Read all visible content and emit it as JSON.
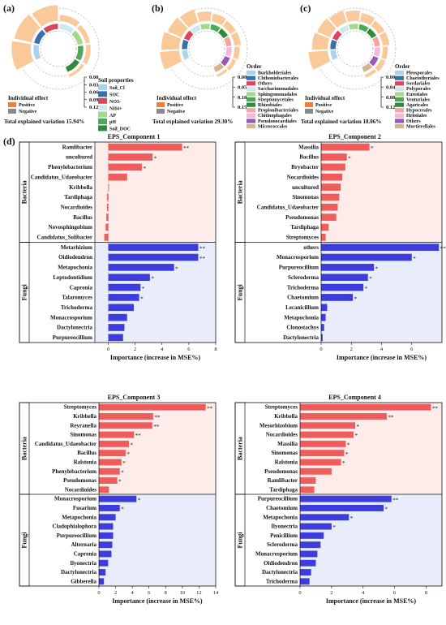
{
  "panels_top": [
    {
      "id": "a",
      "panel_label": "(a)",
      "legend_title": "Soil properties",
      "legend": [
        {
          "name": "Soil_Cl",
          "color": "#a9d3ea"
        },
        {
          "name": "SOC",
          "color": "#3a6fa8"
        },
        {
          "name": "NO3-",
          "color": "#d9485a"
        },
        {
          "name": "NH4+",
          "color": "#cfe7ef"
        },
        {
          "name": "AP",
          "color": "#a6d88a"
        },
        {
          "name": "pH",
          "color": "#4ea85a"
        },
        {
          "name": "Soil_DOC",
          "color": "#2f8a3b"
        }
      ],
      "ticks": [
        "0.00",
        "0.03",
        "0.06",
        "0.09",
        "0.12"
      ],
      "effect_title": "Individual effect",
      "effect_items": [
        {
          "name": "Positive",
          "color": "#f07f3c"
        },
        {
          "name": "Negative",
          "color": "#8a8a8a"
        }
      ],
      "total": "Total explained variation 15.94%",
      "wedges": [
        0.12,
        0.11,
        0.1,
        0.04,
        0.03,
        0.03,
        0.02
      ]
    },
    {
      "id": "b",
      "panel_label": "(b)",
      "legend_title": "Order",
      "legend": [
        {
          "name": "Burkholderiales",
          "color": "#a9d3ea"
        },
        {
          "name": "Chthoniobacterales",
          "color": "#3a6fa8"
        },
        {
          "name": "Others",
          "color": "#d9485a"
        },
        {
          "name": "Saccharimonadales",
          "color": "#cfe7ef"
        },
        {
          "name": "Sphingomonadales",
          "color": "#a6d88a"
        },
        {
          "name": "Streptomycetales",
          "color": "#4ea85a"
        },
        {
          "name": "Rhizobiales",
          "color": "#2f8a3b"
        },
        {
          "name": "Propionibacteriales",
          "color": "#f5a3a3"
        },
        {
          "name": "Chitinophagales",
          "color": "#f4b7d8"
        },
        {
          "name": "Pseudonocardiales",
          "color": "#9b59b6"
        },
        {
          "name": "Micrococcales",
          "color": "#d9b38c"
        }
      ],
      "ticks": [
        "0.00",
        "0.05",
        "0.10",
        "0.15"
      ],
      "effect_title": "Individual effect",
      "effect_items": [
        {
          "name": "Positive",
          "color": "#f07f3c"
        },
        {
          "name": "Negative",
          "color": "#8a8a8a"
        }
      ],
      "total": "Total explained variation 29.30%",
      "wedges": [
        0.14,
        0.13,
        0.11,
        0.1,
        0.07,
        0.06,
        0.05,
        0.05,
        0.04,
        0.03,
        0.02
      ]
    },
    {
      "id": "c",
      "panel_label": "(c)",
      "legend_title": "Order",
      "legend": [
        {
          "name": "Pleosporales",
          "color": "#a9d3ea"
        },
        {
          "name": "Chaetothyriales",
          "color": "#3a6fa8"
        },
        {
          "name": "Sordariales",
          "color": "#d9485a"
        },
        {
          "name": "Polyporales",
          "color": "#cfe7ef"
        },
        {
          "name": "Eurotiales",
          "color": "#a6d88a"
        },
        {
          "name": "Venturiales",
          "color": "#4ea85a"
        },
        {
          "name": "Agaricales",
          "color": "#2f8a3b"
        },
        {
          "name": "Hypocreales",
          "color": "#f5a3a3"
        },
        {
          "name": "Helotiales",
          "color": "#f4b7d8"
        },
        {
          "name": "Others",
          "color": "#9b59b6"
        },
        {
          "name": "Mortierellales",
          "color": "#d9b38c"
        }
      ],
      "ticks": [
        "0.00",
        "0.04",
        "0.08",
        "0.12"
      ],
      "effect_title": "Individual effect",
      "effect_items": [
        {
          "name": "Positive",
          "color": "#f07f3c"
        },
        {
          "name": "Negative",
          "color": "#8a8a8a"
        }
      ],
      "total": "Total explained variation 18.06%",
      "wedges": [
        0.11,
        0.09,
        0.08,
        0.07,
        0.06,
        0.05,
        0.04,
        0.04,
        0.03,
        0.03,
        0.02
      ]
    }
  ],
  "section_label": "(d)",
  "chart_data": [
    {
      "type": "bar",
      "title": "EPS_Component 1",
      "xlabel": "Importance (increase in MSE%)",
      "xlim": [
        -1,
        8
      ],
      "xticks": [
        0,
        2,
        4,
        6,
        8
      ],
      "groups": [
        {
          "name": "Bacteria",
          "color": "#ee5c5c",
          "bg": "#fdece9",
          "categories": [
            "Ramlibacter",
            "uncultured",
            "Phenylobacterium",
            "Candidatus_Udaeobacter",
            "Kribbella",
            "Tardiphaga",
            "Nocardioides",
            "Bacillus",
            "Novosphingobium",
            "Candidatus_Solibacter"
          ],
          "values": [
            5.5,
            3.3,
            2.5,
            1.4,
            0.05,
            -0.1,
            -0.1,
            -0.15,
            -0.2,
            -0.3
          ],
          "marks": [
            "**",
            "*",
            "*",
            "",
            "",
            "",
            "",
            "",
            "",
            ""
          ]
        },
        {
          "name": "Fungi",
          "color": "#3d3ddc",
          "bg": "#e9ecfa",
          "categories": [
            "Metarhizium",
            "Oidiodendron",
            "Metapochonia",
            "Leptodontidium",
            "Capronia",
            "Talaromyces",
            "Trichoderma",
            "Monacrosporium",
            "Dactylonectria",
            "Purpureocillium"
          ],
          "values": [
            6.7,
            6.7,
            4.9,
            3.1,
            2.4,
            2.3,
            1.9,
            1.4,
            1.2,
            1.1
          ],
          "marks": [
            "**",
            "**",
            "*",
            "*",
            "*",
            "*",
            "",
            "",
            "",
            ""
          ]
        }
      ]
    },
    {
      "type": "bar",
      "title": "EPS_Component 2",
      "xlabel": "Importance (increase in MSE%)",
      "xlim": [
        0,
        8
      ],
      "xticks": [
        0,
        2,
        4,
        6
      ],
      "groups": [
        {
          "name": "Bacteria",
          "color": "#ee5c5c",
          "bg": "#fdece9",
          "categories": [
            "Massilia",
            "Bacillus",
            "Bryobacter",
            "Nocardioides",
            "uncultured",
            "Sinomonas",
            "Candidatus_Udaeobacter",
            "Pseudomonas",
            "Tardiphaga",
            "Streptomyces"
          ],
          "values": [
            3.2,
            1.7,
            1.6,
            1.4,
            1.3,
            1.2,
            1.1,
            1.0,
            0.5,
            0.3
          ],
          "marks": [
            "*",
            "*",
            "",
            "",
            "",
            "",
            "",
            "",
            "",
            ""
          ]
        },
        {
          "name": "Fungi",
          "color": "#3d3ddc",
          "bg": "#e9ecfa",
          "categories": [
            "others",
            "Monacrosporium",
            "Purpureocillium",
            "Scleroderma",
            "Trichoderma",
            "Chaetomium",
            "Lecanicillium",
            "Metapochonia",
            "Clonostachys",
            "Dactylonectria"
          ],
          "values": [
            7.8,
            6.0,
            3.5,
            3.1,
            2.8,
            2.1,
            0.4,
            0.3,
            0.2,
            0.1
          ],
          "marks": [
            "**",
            "*",
            "*",
            "*",
            "*",
            "*",
            "",
            "",
            "",
            ""
          ]
        }
      ]
    },
    {
      "type": "bar",
      "title": "EPS_Component 3",
      "xlabel": "Importance (increase in MSE%)",
      "xlim": [
        0,
        14
      ],
      "xticks": [
        0,
        2,
        4,
        6,
        8,
        10,
        12,
        14
      ],
      "groups": [
        {
          "name": "Bacteria",
          "color": "#ee5c5c",
          "bg": "#fdece9",
          "categories": [
            "Streptomyces",
            "Kribbella",
            "Reyranella",
            "Sinomonas",
            "Candidatus_Udaeobacter",
            "Bacillus",
            "Ralstonia",
            "Phenylobacterium",
            "Pseudomonas",
            "Nocardioides"
          ],
          "values": [
            12.8,
            6.5,
            6.4,
            4.2,
            3.6,
            3.2,
            2.7,
            2.5,
            2.2,
            1.2
          ],
          "marks": [
            "**",
            "**",
            "**",
            "**",
            "*",
            "*",
            "*",
            "*",
            "*",
            ""
          ]
        },
        {
          "name": "Fungi",
          "color": "#3d3ddc",
          "bg": "#e9ecfa",
          "categories": [
            "Monacrosporium",
            "Fusarium",
            "Metapochonia",
            "Cladophialophora",
            "Purpureocillium",
            "Alternaria",
            "Capronia",
            "Ilyonectria",
            "Dactylonectria",
            "Gibberella"
          ],
          "values": [
            4.5,
            2.5,
            2.0,
            1.7,
            1.7,
            1.6,
            1.5,
            1.1,
            0.8,
            0.6
          ],
          "marks": [
            "*",
            "*",
            "",
            "",
            "",
            "",
            "",
            "",
            "",
            ""
          ]
        }
      ]
    },
    {
      "type": "bar",
      "title": "EPS_Component 4",
      "xlabel": "Importance (increase in MSE%)",
      "xlim": [
        0,
        9
      ],
      "xticks": [
        0,
        2,
        4,
        6,
        8
      ],
      "groups": [
        {
          "name": "Bacteria",
          "color": "#ee5c5c",
          "bg": "#fdece9",
          "categories": [
            "Streptomyces",
            "Kribbella",
            "Mesorhizobium",
            "Nocardioides",
            "Massilia",
            "Sinomonas",
            "Ralstonia",
            "Pseudomonas",
            "Ramlibacter",
            "Tardiphaga"
          ],
          "values": [
            8.3,
            5.5,
            3.5,
            3.4,
            2.9,
            2.8,
            2.6,
            2.0,
            1.0,
            0.9
          ],
          "marks": [
            "**",
            "**",
            "*",
            "*",
            "*",
            "*",
            "*",
            "",
            "",
            ""
          ]
        },
        {
          "name": "Fungi",
          "color": "#3d3ddc",
          "bg": "#e9ecfa",
          "categories": [
            "Purpureocillium",
            "Chaetomium",
            "Metapochonia",
            "Ilyonectria",
            "Penicillium",
            "Scleroderma",
            "Monacrosporium",
            "Oidiodendron",
            "Dactylonectria",
            "Trichoderma"
          ],
          "values": [
            5.8,
            5.3,
            3.1,
            2.0,
            1.5,
            1.3,
            1.1,
            1.0,
            0.7,
            0.6
          ],
          "marks": [
            "**",
            "*",
            "*",
            "*",
            "",
            "",
            "",
            "",
            "",
            ""
          ]
        }
      ]
    }
  ]
}
